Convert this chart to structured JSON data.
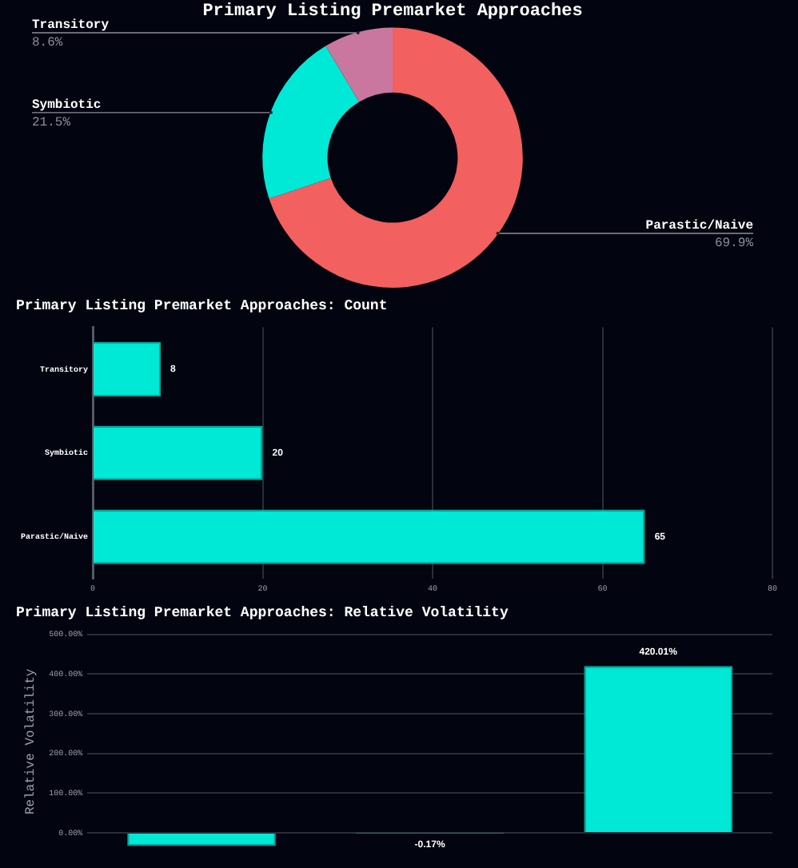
{
  "chart_data": [
    {
      "type": "donut",
      "title": "Primary Listing Premarket Approaches",
      "categories": [
        "Parastic/Naive",
        "Symbiotic",
        "Transitory"
      ],
      "values": [
        69.9,
        21.5,
        8.6
      ],
      "colors": [
        "#f2605f",
        "#00e8d6",
        "#c9779f"
      ],
      "value_labels": [
        "69.9%",
        "21.5%",
        "8.6%"
      ]
    },
    {
      "type": "bar",
      "orientation": "horizontal",
      "title": "Primary Listing Premarket Approaches: Count",
      "categories": [
        "Transitory",
        "Symbiotic",
        "Parastic/Naive"
      ],
      "values": [
        8,
        20,
        65
      ],
      "color": "#00e8d6",
      "xlim": [
        0,
        80
      ],
      "xticks": [
        0,
        20,
        40,
        60,
        80
      ],
      "grid": "x",
      "data_labels": true
    },
    {
      "type": "bar",
      "title": "Primary Listing Premarket Approaches: Relative Volatility",
      "ylabel": "Relative Volatility",
      "categories": [
        null,
        null,
        null
      ],
      "values": [
        -33,
        -0.17,
        420.01
      ],
      "color": "#00e8d6",
      "value_labels": [
        null,
        "-0.17%",
        "420.01%"
      ],
      "ylim": [
        -40,
        500
      ],
      "yticks": [
        {
          "value": 0,
          "label": "0.00%"
        },
        {
          "value": 100,
          "label": "100.00%"
        },
        {
          "value": 200,
          "label": "200.00%"
        },
        {
          "value": 300,
          "label": "300.00%"
        },
        {
          "value": 400,
          "label": "400.00%"
        },
        {
          "value": 500,
          "label": "500.00%"
        }
      ],
      "grid": "y"
    }
  ]
}
